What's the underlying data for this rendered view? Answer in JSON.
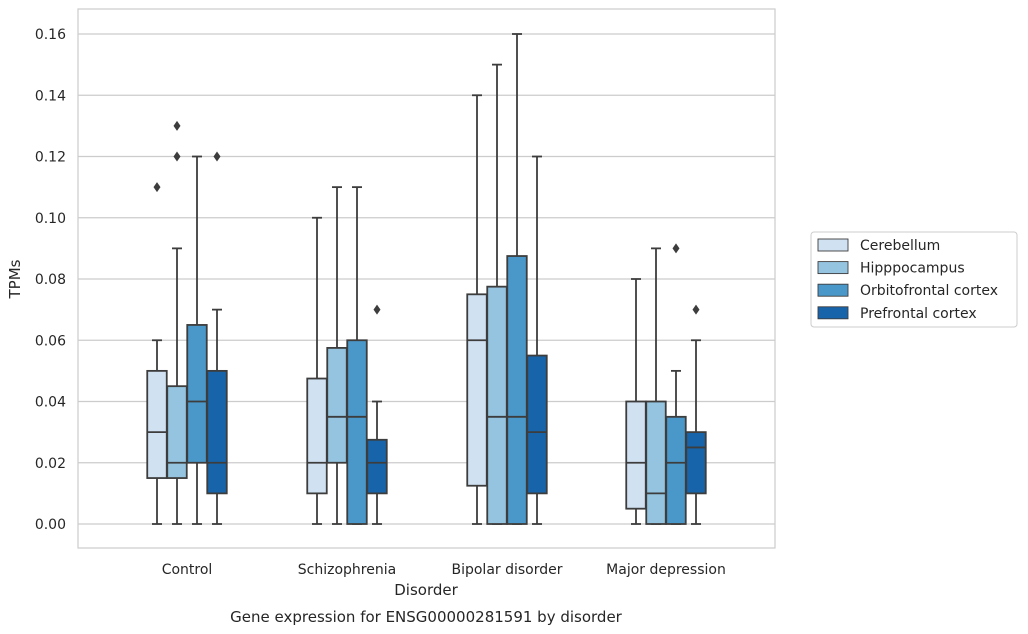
{
  "chart_data": {
    "type": "box",
    "xlabel": "Disorder",
    "ylabel": "TPMs",
    "caption": "Gene expression for ENSG00000281591 by disorder",
    "ylim": [
      -0.008,
      0.168
    ],
    "yticks": [
      "0.00",
      "0.02",
      "0.04",
      "0.06",
      "0.08",
      "0.10",
      "0.12",
      "0.14",
      "0.16"
    ],
    "ytick_values": [
      0,
      0.02,
      0.04,
      0.06,
      0.08,
      0.1,
      0.12,
      0.14,
      0.16
    ],
    "grid": true,
    "legend_position": "right",
    "categories": [
      "Control",
      "Schizophrenia",
      "Bipolar disorder",
      "Major depression"
    ],
    "series": [
      {
        "name": "Cerebellum",
        "color": "#d0e1f2",
        "boxes": [
          {
            "whislo": 0.0,
            "q1": 0.015,
            "med": 0.03,
            "q3": 0.05,
            "whishi": 0.06,
            "fliers": [
              0.11
            ]
          },
          {
            "whislo": 0.0,
            "q1": 0.01,
            "med": 0.02,
            "q3": 0.0475,
            "whishi": 0.1,
            "fliers": []
          },
          {
            "whislo": 0.0,
            "q1": 0.0125,
            "med": 0.06,
            "q3": 0.075,
            "whishi": 0.14,
            "fliers": []
          },
          {
            "whislo": 0.0,
            "q1": 0.005,
            "med": 0.02,
            "q3": 0.04,
            "whishi": 0.08,
            "fliers": []
          }
        ]
      },
      {
        "name": "Hipppocampus",
        "color": "#94c4df",
        "boxes": [
          {
            "whislo": 0.0,
            "q1": 0.015,
            "med": 0.02,
            "q3": 0.045,
            "whishi": 0.09,
            "fliers": [
              0.12,
              0.13
            ]
          },
          {
            "whislo": 0.0,
            "q1": 0.02,
            "med": 0.035,
            "q3": 0.0575,
            "whishi": 0.11,
            "fliers": []
          },
          {
            "whislo": 0.0,
            "q1": 0.0,
            "med": 0.035,
            "q3": 0.0775,
            "whishi": 0.15,
            "fliers": []
          },
          {
            "whislo": 0.0,
            "q1": 0.0,
            "med": 0.01,
            "q3": 0.04,
            "whishi": 0.09,
            "fliers": []
          }
        ]
      },
      {
        "name": "Orbitofrontal cortex",
        "color": "#4a98c9",
        "boxes": [
          {
            "whislo": 0.0,
            "q1": 0.02,
            "med": 0.04,
            "q3": 0.065,
            "whishi": 0.12,
            "fliers": []
          },
          {
            "whislo": 0.0,
            "q1": 0.0,
            "med": 0.035,
            "q3": 0.06,
            "whishi": 0.11,
            "fliers": []
          },
          {
            "whislo": 0.0,
            "q1": 0.0,
            "med": 0.035,
            "q3": 0.0875,
            "whishi": 0.16,
            "fliers": []
          },
          {
            "whislo": 0.0,
            "q1": 0.0,
            "med": 0.02,
            "q3": 0.035,
            "whishi": 0.05,
            "fliers": [
              0.09
            ]
          }
        ]
      },
      {
        "name": "Prefrontal cortex",
        "color": "#1764ab",
        "boxes": [
          {
            "whislo": 0.0,
            "q1": 0.01,
            "med": 0.02,
            "q3": 0.05,
            "whishi": 0.07,
            "fliers": [
              0.12
            ]
          },
          {
            "whislo": 0.0,
            "q1": 0.01,
            "med": 0.02,
            "q3": 0.0275,
            "whishi": 0.04,
            "fliers": [
              0.07
            ]
          },
          {
            "whislo": 0.0,
            "q1": 0.01,
            "med": 0.03,
            "q3": 0.055,
            "whishi": 0.12,
            "fliers": []
          },
          {
            "whislo": 0.0,
            "q1": 0.01,
            "med": 0.025,
            "q3": 0.03,
            "whishi": 0.06,
            "fliers": [
              0.07
            ]
          }
        ]
      }
    ]
  }
}
